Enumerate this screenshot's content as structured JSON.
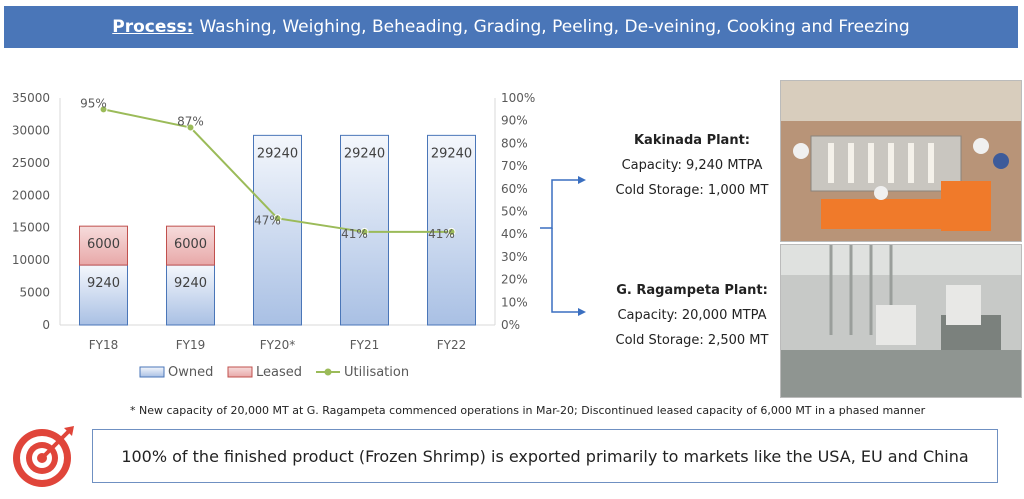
{
  "banner": {
    "key": "Process:",
    "text": "Washing, Weighing, Beheading, Grading, Peeling, De-veining, Cooking and Freezing"
  },
  "chart_data": {
    "type": "bar",
    "categories": [
      "FY18",
      "FY19",
      "FY20*",
      "FY21",
      "FY22"
    ],
    "stacked": true,
    "series": [
      {
        "name": "Owned",
        "kind": "bar",
        "axis": "left",
        "color": "#a9c0e4",
        "values": [
          9240,
          9240,
          29240,
          29240,
          29240
        ]
      },
      {
        "name": "Leased",
        "kind": "bar",
        "axis": "left",
        "color": "#e39e9e",
        "values": [
          6000,
          6000,
          null,
          null,
          null
        ]
      },
      {
        "name": "Utilisation",
        "kind": "line",
        "axis": "right",
        "color": "#9bbb59",
        "values": [
          95,
          87,
          47,
          41,
          41
        ]
      }
    ],
    "bar_labels": {
      "Owned": [
        "9240",
        "9240",
        "29240",
        "29240",
        "29240"
      ],
      "Leased": [
        "6000",
        "6000",
        "",
        "",
        ""
      ]
    },
    "line_labels": [
      "95%",
      "87%",
      "47%",
      "41%",
      "41%"
    ],
    "left_axis": {
      "min": 0,
      "max": 35000,
      "ticks": [
        "0",
        "5000",
        "10000",
        "15000",
        "20000",
        "25000",
        "30000",
        "35000"
      ]
    },
    "right_axis": {
      "min": 0,
      "max": 100,
      "ticks": [
        "0%",
        "10%",
        "20%",
        "30%",
        "40%",
        "50%",
        "60%",
        "70%",
        "80%",
        "90%",
        "100%"
      ]
    },
    "legend": [
      "Owned",
      "Leased",
      "Utilisation"
    ],
    "legend_position": "bottom",
    "grid": false
  },
  "plants": [
    {
      "name": "Kakinada Plant:",
      "capacity": "Capacity: 9,240 MTPA",
      "storage": "Cold Storage: 1,000 MT"
    },
    {
      "name": "G. Ragampeta Plant:",
      "capacity": "Capacity: 20,000 MTPA",
      "storage": "Cold Storage: 2,500 MT"
    }
  ],
  "footnote": "* New capacity of 20,000 MT at G. Ragampeta commenced operations in Mar-20; Discontinued leased capacity of 6,000 MT in a phased manner",
  "export_statement": "100% of the finished product (Frozen Shrimp) is exported primarily to markets like the USA, EU and China",
  "colors": {
    "banner": "#4a76b8",
    "accent_red": "#e0453a",
    "arrow": "#3a6fc0"
  }
}
